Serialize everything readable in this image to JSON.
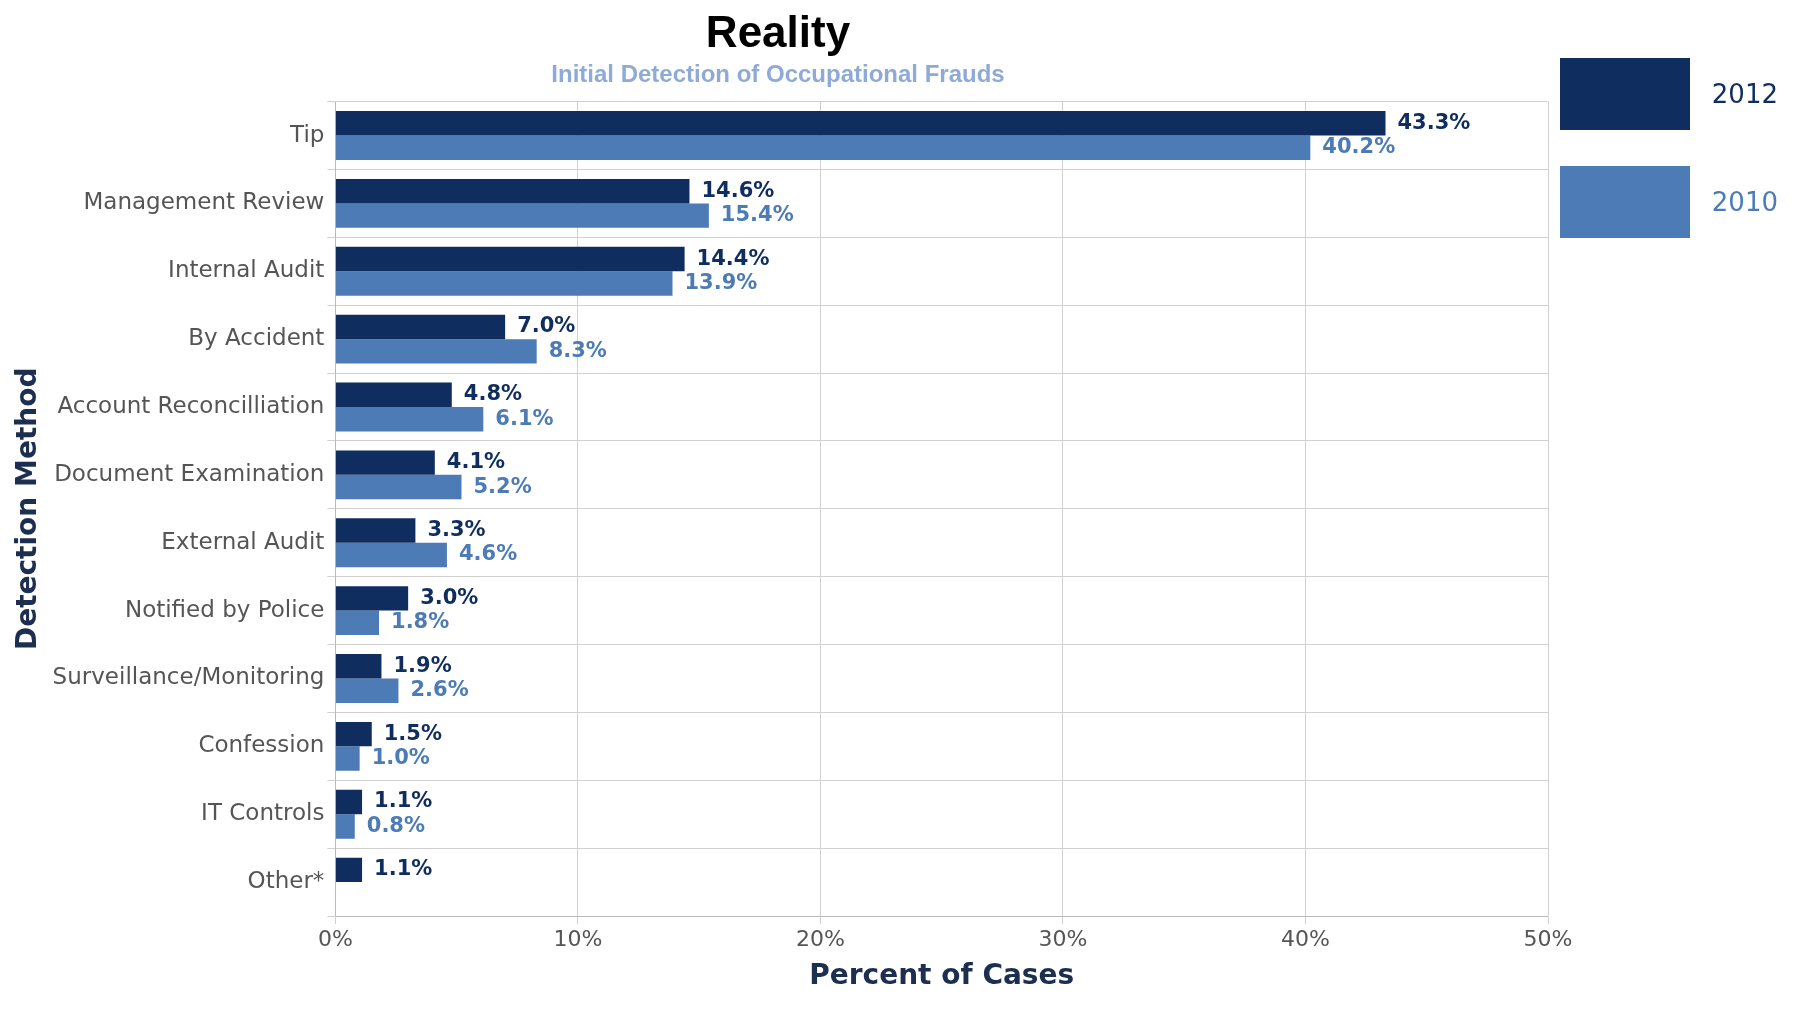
{
  "chart_data": {
    "type": "bar",
    "title": "Reality",
    "subtitle": "Initial Detection of Occupational Frauds",
    "orientation": "horizontal",
    "categories": [
      "Tip",
      "Management Review",
      "Internal Audit",
      "By Accident",
      "Account Reconcilliation",
      "Document Examination",
      "External Audit",
      "Notified by Police",
      "Surveillance/Monitoring",
      "Confession",
      "IT Controls",
      "Other*"
    ],
    "series": [
      {
        "name": "2012",
        "color": "#0f2d5e",
        "values": [
          43.3,
          14.6,
          14.4,
          7.0,
          4.8,
          4.1,
          3.3,
          3.0,
          1.9,
          1.5,
          1.1,
          1.1
        ],
        "value_labels": [
          "43.3%",
          "14.6%",
          "14.4%",
          "7.0%",
          "4.8%",
          "4.1%",
          "3.3%",
          "3.0%",
          "1.9%",
          "1.5%",
          "1.1%",
          "1.1%"
        ]
      },
      {
        "name": "2010",
        "color": "#4c7bb5",
        "values": [
          40.2,
          15.4,
          13.9,
          8.3,
          6.1,
          5.2,
          4.6,
          1.8,
          2.6,
          1.0,
          0.8,
          null
        ],
        "value_labels": [
          "40.2%",
          "15.4%",
          "13.9%",
          "8.3%",
          "6.1%",
          "5.2%",
          "4.6%",
          "1.8%",
          "2.6%",
          "1.0%",
          "0.8%",
          null
        ]
      }
    ],
    "xlim": [
      0,
      50
    ],
    "xticks": [
      {
        "value": 0,
        "label": "0%"
      },
      {
        "value": 10,
        "label": "10%"
      },
      {
        "value": 20,
        "label": "20%"
      },
      {
        "value": 30,
        "label": "30%"
      },
      {
        "value": 40,
        "label": "40%"
      },
      {
        "value": 50,
        "label": "50%"
      }
    ],
    "xlabel": "Percent of Cases",
    "ylabel": "Detection Method",
    "grid": true,
    "legend": "top right"
  }
}
